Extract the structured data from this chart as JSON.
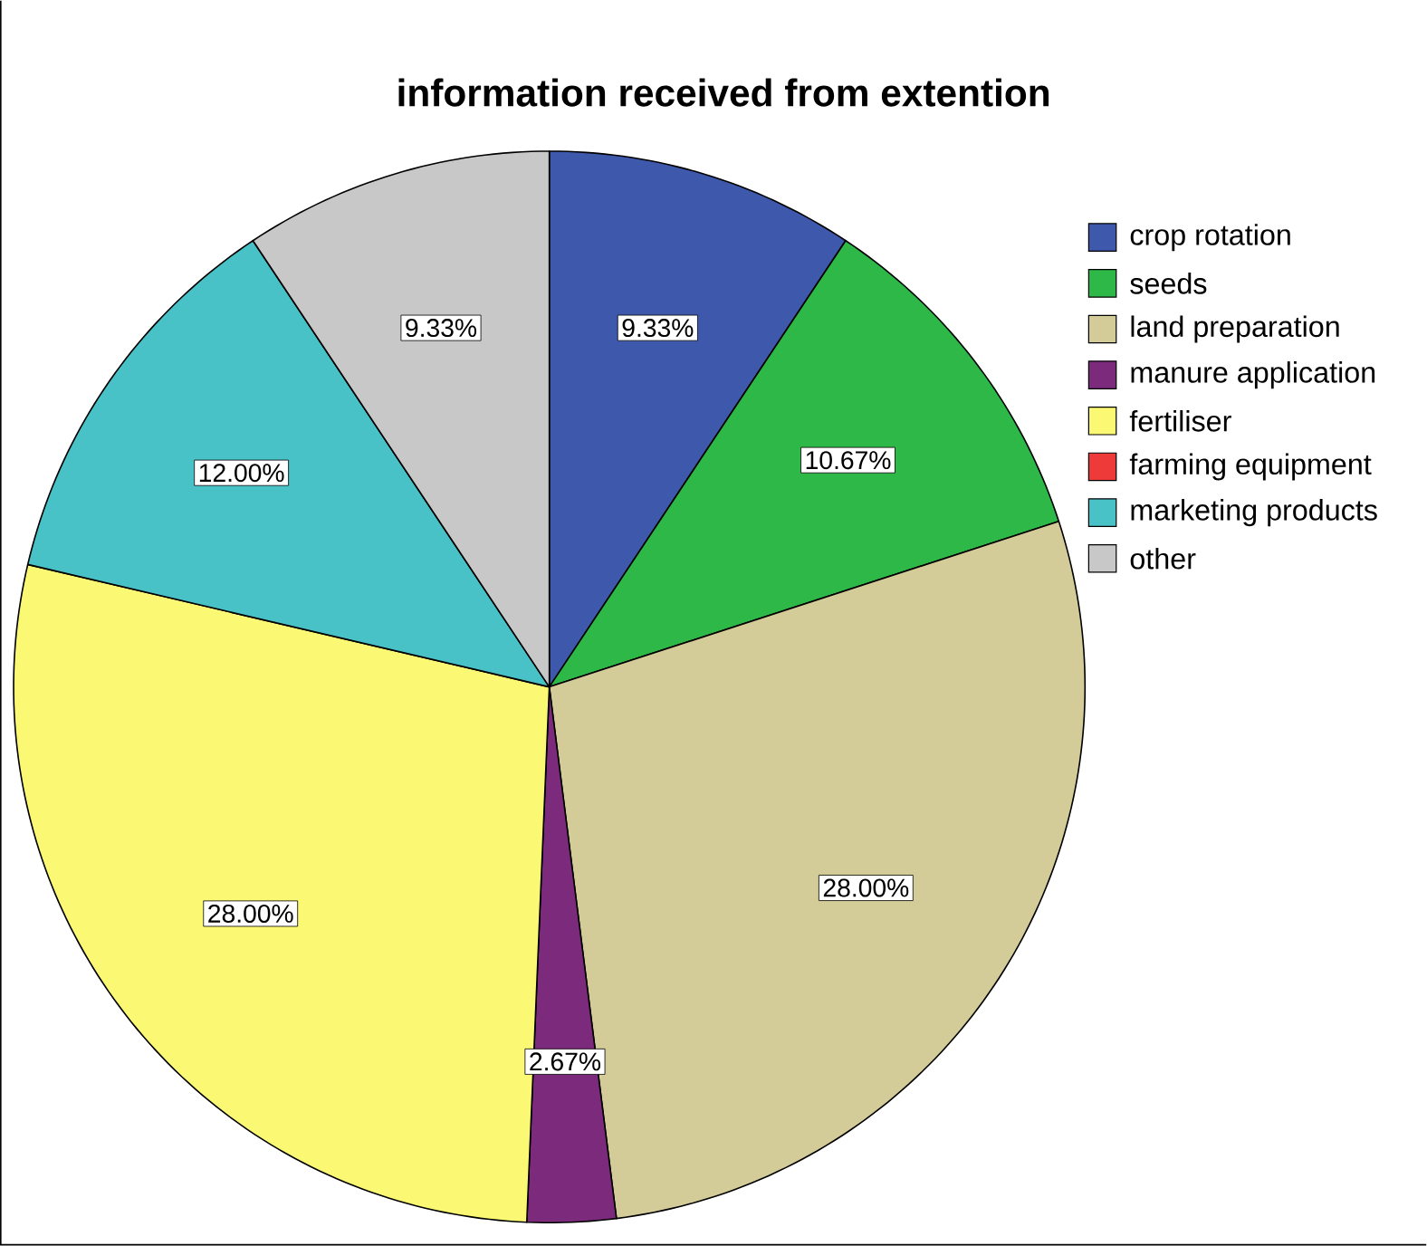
{
  "chart_data": {
    "type": "pie",
    "title": "information  received from extention",
    "categories": [
      "crop rotation",
      "seeds",
      "land preparation",
      "manure application",
      "fertiliser",
      "farming equipment",
      "marketing products",
      "other"
    ],
    "values": [
      9.33,
      10.67,
      28.0,
      2.67,
      28.0,
      0,
      12.0,
      9.33
    ],
    "colors": [
      "#3e58ac",
      "#2eb848",
      "#d4cc98",
      "#7b2a7c",
      "#fbf873",
      "#ef3a3a",
      "#48c1c7",
      "#c8c8c8"
    ],
    "value_labels": [
      "9.33%",
      "10.67%",
      "28.00%",
      "2.67%",
      "28.00%",
      null,
      "12.00%",
      "9.33%"
    ],
    "legend": "right"
  }
}
